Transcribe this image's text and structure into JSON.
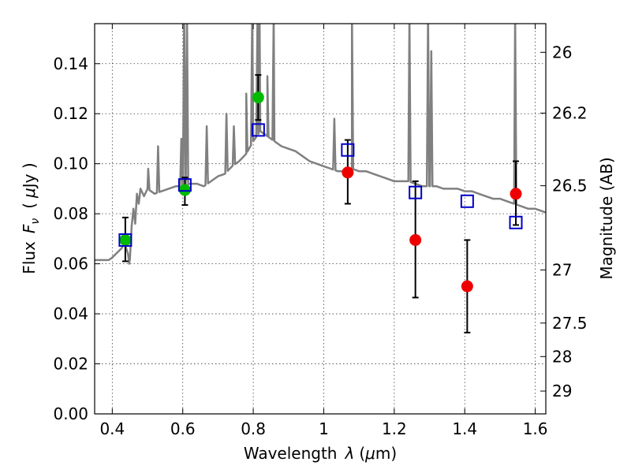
{
  "chart_data": {
    "type": "scatter",
    "x_axis": {
      "label": "Wavelength",
      "label_symbol": "λ",
      "label_unit_prefix": "(",
      "label_unit_mu": "μ",
      "label_unit_rest": "m)",
      "range": [
        0.35,
        1.63
      ],
      "ticks": [
        0.4,
        0.6,
        0.8,
        1.0,
        1.2,
        1.4,
        1.6
      ],
      "tick_labels": [
        "0.4",
        "0.6",
        "0.8",
        "1",
        "1.2",
        "1.4",
        "1.6"
      ]
    },
    "y_axis": {
      "label_prefix": "Flux",
      "label_symbol": "F",
      "label_sub": "ν",
      "label_unit_open": "(",
      "label_unit_mu": "μ",
      "label_unit_rest": "Jy )",
      "range": [
        0.0,
        0.156
      ],
      "ticks": [
        0.0,
        0.02,
        0.04,
        0.06,
        0.08,
        0.1,
        0.12,
        0.14
      ],
      "tick_labels": [
        "0.00",
        "0.02",
        "0.04",
        "0.06",
        "0.08",
        "0.10",
        "0.12",
        "0.14"
      ]
    },
    "y2_axis": {
      "label": "Magnitude (AB)",
      "ticks": [
        26,
        26.2,
        26.5,
        27,
        27.5,
        28,
        29
      ],
      "tick_labels": [
        "26",
        "26.2",
        "26.5",
        "27",
        "27.5",
        "28",
        "29"
      ]
    },
    "grid": true,
    "colors": {
      "spectrum": "#808080",
      "green_points": "#00bb00",
      "red_points": "#ee0000",
      "model_squares": "#0000cc",
      "error_bars": "#000000"
    },
    "spectrum": {
      "name": "",
      "continuum": [
        [
          0.35,
          0.0615
        ],
        [
          0.39,
          0.0615
        ],
        [
          0.4,
          0.0625
        ],
        [
          0.425,
          0.066
        ],
        [
          0.435,
          0.068
        ],
        [
          0.45,
          0.062
        ],
        [
          0.455,
          0.075
        ],
        [
          0.46,
          0.082
        ],
        [
          0.465,
          0.076
        ],
        [
          0.47,
          0.088
        ],
        [
          0.475,
          0.084
        ],
        [
          0.48,
          0.09
        ],
        [
          0.49,
          0.087
        ],
        [
          0.5,
          0.09
        ],
        [
          0.52,
          0.088
        ],
        [
          0.54,
          0.089
        ],
        [
          0.56,
          0.09
        ],
        [
          0.58,
          0.091
        ],
        [
          0.6,
          0.091
        ],
        [
          0.62,
          0.092
        ],
        [
          0.64,
          0.092
        ],
        [
          0.66,
          0.091
        ],
        [
          0.68,
          0.093
        ],
        [
          0.7,
          0.095
        ],
        [
          0.72,
          0.096
        ],
        [
          0.74,
          0.099
        ],
        [
          0.76,
          0.101
        ],
        [
          0.78,
          0.104
        ],
        [
          0.8,
          0.109
        ],
        [
          0.82,
          0.113
        ],
        [
          0.84,
          0.111
        ],
        [
          0.86,
          0.109
        ],
        [
          0.88,
          0.107
        ],
        [
          0.9,
          0.106
        ],
        [
          0.92,
          0.105
        ],
        [
          0.94,
          0.103
        ],
        [
          0.96,
          0.101
        ],
        [
          0.98,
          0.1
        ],
        [
          1.0,
          0.099
        ],
        [
          1.02,
          0.098
        ],
        [
          1.04,
          0.097
        ],
        [
          1.06,
          0.097
        ],
        [
          1.08,
          0.098
        ],
        [
          1.1,
          0.097
        ],
        [
          1.12,
          0.097
        ],
        [
          1.14,
          0.096
        ],
        [
          1.16,
          0.095
        ],
        [
          1.18,
          0.094
        ],
        [
          1.2,
          0.093
        ],
        [
          1.22,
          0.093
        ],
        [
          1.24,
          0.093
        ],
        [
          1.26,
          0.092
        ],
        [
          1.28,
          0.091
        ],
        [
          1.3,
          0.091
        ],
        [
          1.32,
          0.091
        ],
        [
          1.34,
          0.09
        ],
        [
          1.36,
          0.09
        ],
        [
          1.38,
          0.09
        ],
        [
          1.4,
          0.089
        ],
        [
          1.42,
          0.089
        ],
        [
          1.44,
          0.088
        ],
        [
          1.46,
          0.087
        ],
        [
          1.48,
          0.086
        ],
        [
          1.5,
          0.086
        ],
        [
          1.52,
          0.085
        ],
        [
          1.54,
          0.084
        ],
        [
          1.56,
          0.083
        ],
        [
          1.58,
          0.082
        ],
        [
          1.6,
          0.082
        ],
        [
          1.63,
          0.0805
        ]
      ],
      "features": [
        {
          "x": 0.448,
          "value": 0.06
        },
        {
          "x": 0.502,
          "value": 0.098
        },
        {
          "x": 0.53,
          "value": 0.107
        },
        {
          "x": 0.596,
          "value": 0.11
        },
        {
          "x": 0.604,
          "value": 0.16
        },
        {
          "x": 0.612,
          "value": 0.16
        },
        {
          "x": 0.668,
          "value": 0.115
        },
        {
          "x": 0.724,
          "value": 0.12
        },
        {
          "x": 0.745,
          "value": 0.115
        },
        {
          "x": 0.78,
          "value": 0.128
        },
        {
          "x": 0.797,
          "value": 0.16
        },
        {
          "x": 0.812,
          "value": 0.16
        },
        {
          "x": 0.818,
          "value": 0.16
        },
        {
          "x": 0.84,
          "value": 0.135
        },
        {
          "x": 0.858,
          "value": 0.16
        },
        {
          "x": 1.03,
          "value": 0.118
        },
        {
          "x": 1.08,
          "value": 0.16
        },
        {
          "x": 1.243,
          "value": 0.16
        },
        {
          "x": 1.296,
          "value": 0.16
        },
        {
          "x": 1.305,
          "value": 0.145
        },
        {
          "x": 1.543,
          "value": 0.16
        }
      ]
    },
    "green_points": [
      {
        "x": 0.437,
        "y": 0.0695,
        "err_low": 0.061,
        "err_high": 0.0785
      },
      {
        "x": 0.606,
        "y": 0.0895,
        "err_low": 0.0835,
        "err_high": 0.0945
      },
      {
        "x": 0.814,
        "y": 0.1265,
        "err_low": 0.1175,
        "err_high": 0.1355
      }
    ],
    "red_points": [
      {
        "x": 1.068,
        "y": 0.0965,
        "err_low": 0.084,
        "err_high": 0.1095
      },
      {
        "x": 1.26,
        "y": 0.0695,
        "err_low": 0.0465,
        "err_high": 0.093
      },
      {
        "x": 1.407,
        "y": 0.051,
        "err_low": 0.0325,
        "err_high": 0.0695
      },
      {
        "x": 1.545,
        "y": 0.088,
        "err_low": 0.0755,
        "err_high": 0.101
      }
    ],
    "model_squares": [
      {
        "x": 0.437,
        "y": 0.0695
      },
      {
        "x": 0.606,
        "y": 0.0915
      },
      {
        "x": 0.814,
        "y": 0.1135
      },
      {
        "x": 1.068,
        "y": 0.1055
      },
      {
        "x": 1.26,
        "y": 0.0885
      },
      {
        "x": 1.407,
        "y": 0.085
      },
      {
        "x": 1.545,
        "y": 0.0765
      }
    ]
  }
}
